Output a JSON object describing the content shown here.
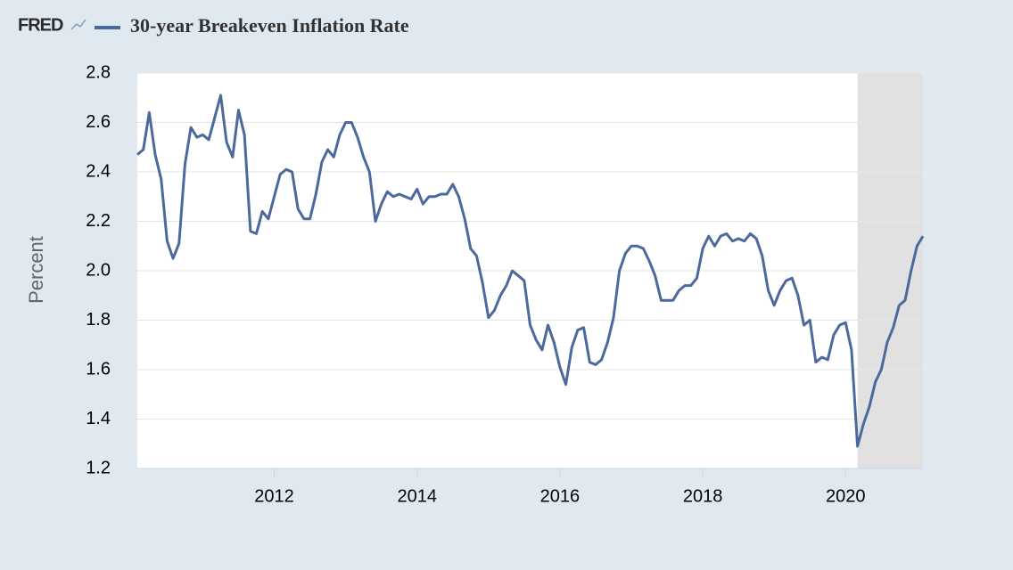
{
  "chart_data": {
    "type": "line",
    "logo": "FRED",
    "ylabel": "Percent",
    "series": [
      {
        "name": "30-year Breakeven Inflation Rate",
        "color": "#4b6a9b",
        "values": [
          2.47,
          2.49,
          2.64,
          2.47,
          2.37,
          2.12,
          2.05,
          2.11,
          2.43,
          2.58,
          2.54,
          2.55,
          2.53,
          2.62,
          2.71,
          2.52,
          2.46,
          2.65,
          2.55,
          2.16,
          2.15,
          2.24,
          2.21,
          2.3,
          2.39,
          2.41,
          2.4,
          2.25,
          2.21,
          2.21,
          2.31,
          2.44,
          2.49,
          2.46,
          2.55,
          2.6,
          2.6,
          2.54,
          2.46,
          2.4,
          2.2,
          2.27,
          2.32,
          2.3,
          2.31,
          2.3,
          2.29,
          2.33,
          2.27,
          2.3,
          2.3,
          2.31,
          2.31,
          2.35,
          2.3,
          2.21,
          2.09,
          2.06,
          1.95,
          1.81,
          1.84,
          1.9,
          1.94,
          2.0,
          1.98,
          1.96,
          1.78,
          1.72,
          1.68,
          1.78,
          1.71,
          1.61,
          1.54,
          1.69,
          1.76,
          1.77,
          1.63,
          1.62,
          1.64,
          1.71,
          1.81,
          2.0,
          2.07,
          2.1,
          2.1,
          2.09,
          2.04,
          1.98,
          1.88,
          1.88,
          1.88,
          1.92,
          1.94,
          1.94,
          1.97,
          2.09,
          2.14,
          2.1,
          2.14,
          2.15,
          2.12,
          2.13,
          2.12,
          2.15,
          2.13,
          2.06,
          1.92,
          1.86,
          1.92,
          1.96,
          1.97,
          1.9,
          1.78,
          1.8,
          1.63,
          1.65,
          1.64,
          1.74,
          1.78,
          1.79,
          1.68,
          1.29,
          1.38,
          1.45,
          1.55,
          1.6,
          1.71,
          1.77,
          1.86,
          1.88,
          2.0,
          2.1,
          2.14
        ]
      }
    ],
    "x": [
      2010.083,
      2010.167,
      2010.25,
      2010.333,
      2010.417,
      2010.5,
      2010.583,
      2010.667,
      2010.75,
      2010.833,
      2010.917,
      2011,
      2011.083,
      2011.167,
      2011.25,
      2011.333,
      2011.417,
      2011.5,
      2011.583,
      2011.667,
      2011.75,
      2011.833,
      2011.917,
      2012,
      2012.083,
      2012.167,
      2012.25,
      2012.333,
      2012.417,
      2012.5,
      2012.583,
      2012.667,
      2012.75,
      2012.833,
      2012.917,
      2013,
      2013.083,
      2013.167,
      2013.25,
      2013.333,
      2013.417,
      2013.5,
      2013.583,
      2013.667,
      2013.75,
      2013.833,
      2013.917,
      2014,
      2014.083,
      2014.167,
      2014.25,
      2014.333,
      2014.417,
      2014.5,
      2014.583,
      2014.667,
      2014.75,
      2014.833,
      2014.917,
      2015,
      2015.083,
      2015.167,
      2015.25,
      2015.333,
      2015.417,
      2015.5,
      2015.583,
      2015.667,
      2015.75,
      2015.833,
      2015.917,
      2016,
      2016.083,
      2016.167,
      2016.25,
      2016.333,
      2016.417,
      2016.5,
      2016.583,
      2016.667,
      2016.75,
      2016.833,
      2016.917,
      2017,
      2017.083,
      2017.167,
      2017.25,
      2017.333,
      2017.417,
      2017.5,
      2017.583,
      2017.667,
      2017.75,
      2017.833,
      2017.917,
      2018,
      2018.083,
      2018.167,
      2018.25,
      2018.333,
      2018.417,
      2018.5,
      2018.583,
      2018.667,
      2018.75,
      2018.833,
      2018.917,
      2019,
      2019.083,
      2019.167,
      2019.25,
      2019.333,
      2019.417,
      2019.5,
      2019.583,
      2019.667,
      2019.75,
      2019.833,
      2019.917,
      2020,
      2020.083,
      2020.167,
      2020.25,
      2020.333,
      2020.417,
      2020.5,
      2020.583,
      2020.667,
      2020.75,
      2020.833,
      2020.917,
      2021,
      2021.083
    ],
    "recession": [
      2020.167,
      2021.083
    ],
    "recession_color": "#e1e1e1",
    "xlim": [
      2010.083,
      2021.083
    ],
    "xticks": [
      2012,
      2014,
      2016,
      2018,
      2020
    ],
    "ylim": [
      1.2,
      2.8
    ],
    "yticks": [
      1.2,
      1.4,
      1.6,
      1.8,
      {
        "value": 2,
        "label": "2.0"
      },
      2.2,
      2.4,
      2.6,
      2.8
    ],
    "grid": true
  }
}
